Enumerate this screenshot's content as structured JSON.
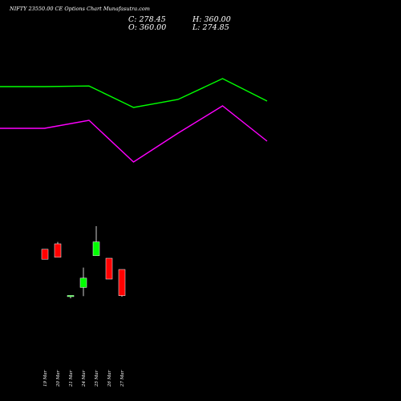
{
  "header": {
    "title": "NIFTY 23550.00  CE Options  Chart Munafasutra.com",
    "close_text": "C: 278.45",
    "open_text": "O: 360.00",
    "high_text": "H: 360.00",
    "low_text": "L: 274.85"
  },
  "chart_data": [
    {
      "type": "line",
      "x": [
        "19 Mar",
        "20 Mar",
        "21 Mar",
        "24 Mar",
        "25 Mar",
        "26 Mar",
        "27 Mar"
      ],
      "series": [
        {
          "color": "#00ff00",
          "values": [
            580,
            580,
            582,
            515,
            540,
            605,
            535
          ]
        },
        {
          "color": "#ff00ff",
          "values": [
            450,
            450,
            475,
            345,
            435,
            520,
            410
          ]
        }
      ],
      "ylim": [
        250,
        700
      ]
    },
    {
      "type": "candlestick",
      "categories": [
        "19 Mar",
        "20 Mar",
        "21 Mar",
        "24 Mar",
        "25 Mar",
        "26 Mar",
        "27 Mar"
      ],
      "candles": [
        {
          "label": "19 Mar",
          "open": 423,
          "high": 423,
          "low": 392,
          "close": 392,
          "color": "#ff0000"
        },
        {
          "label": "20 Mar",
          "open": 440,
          "high": 446,
          "low": 398,
          "close": 398,
          "color": "#ff0000"
        },
        {
          "label": "21 Mar",
          "open": 276,
          "high": 279,
          "low": 270,
          "close": 279,
          "color": "#00ff00"
        },
        {
          "label": "24 Mar",
          "open": 304,
          "high": 366,
          "low": 277,
          "close": 333,
          "color": "#00ff00"
        },
        {
          "label": "25 Mar",
          "open": 403,
          "high": 495,
          "low": 403,
          "close": 446,
          "color": "#00ff00"
        },
        {
          "label": "26 Mar",
          "open": 395,
          "high": 395,
          "low": 330,
          "close": 330,
          "color": "#ff0000"
        },
        {
          "label": "27 Mar",
          "open": 360,
          "high": 360,
          "low": 274.85,
          "close": 278.45,
          "color": "#ff0000"
        }
      ],
      "ylim": [
        200,
        600
      ]
    }
  ]
}
